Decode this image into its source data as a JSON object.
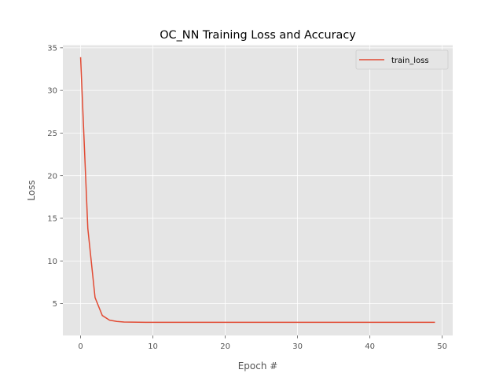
{
  "chart_data": {
    "type": "line",
    "title": "OC_NN Training Loss and Accuracy",
    "xlabel": "Epoch #",
    "ylabel": "Loss",
    "xlim": [
      -2.45,
      51.45
    ],
    "ylim": [
      1.25,
      35.3
    ],
    "xticks": [
      0,
      10,
      20,
      30,
      40,
      50
    ],
    "yticks": [
      5,
      10,
      15,
      20,
      25,
      30,
      35
    ],
    "grid": true,
    "legend": "upper-right",
    "series": [
      {
        "name": "train_loss",
        "color": "#e24a33",
        "x": [
          0,
          1,
          2,
          3,
          4,
          5,
          6,
          7,
          8,
          9,
          10,
          11,
          12,
          13,
          14,
          15,
          16,
          17,
          18,
          19,
          20,
          21,
          22,
          23,
          24,
          25,
          26,
          27,
          28,
          29,
          30,
          31,
          32,
          33,
          34,
          35,
          36,
          37,
          38,
          39,
          40,
          41,
          42,
          43,
          44,
          45,
          46,
          47,
          48,
          49
        ],
        "y": [
          33.9,
          13.8,
          5.7,
          3.6,
          3.05,
          2.9,
          2.84,
          2.82,
          2.81,
          2.8,
          2.8,
          2.8,
          2.8,
          2.8,
          2.8,
          2.8,
          2.8,
          2.8,
          2.8,
          2.8,
          2.8,
          2.8,
          2.8,
          2.8,
          2.8,
          2.8,
          2.8,
          2.8,
          2.8,
          2.8,
          2.8,
          2.8,
          2.8,
          2.8,
          2.8,
          2.8,
          2.8,
          2.8,
          2.8,
          2.8,
          2.8,
          2.8,
          2.8,
          2.8,
          2.8,
          2.8,
          2.8,
          2.8,
          2.8,
          2.8
        ]
      }
    ]
  }
}
